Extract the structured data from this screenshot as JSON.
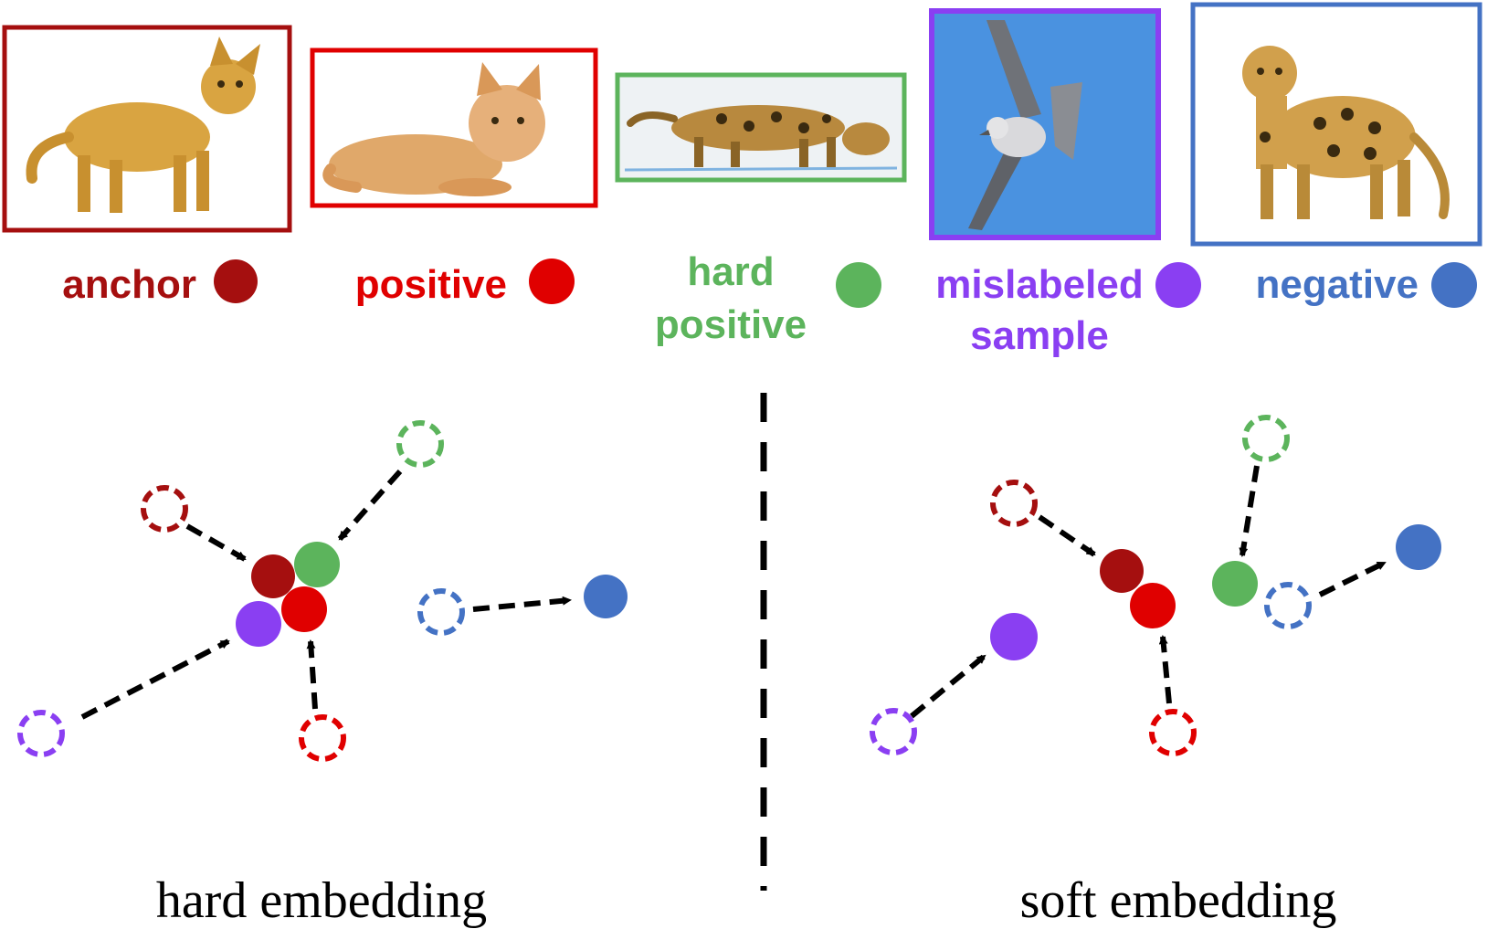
{
  "colors": {
    "anchor": "#a50f0f",
    "positive": "#e00000",
    "hard_positive": "#5cb45c",
    "mislabeled": "#8a3ff2",
    "negative": "#4472c4",
    "arrow": "#000000"
  },
  "legend": [
    {
      "key": "anchor",
      "lines": [
        "anchor"
      ],
      "image": "cat-standing-icon"
    },
    {
      "key": "positive",
      "lines": [
        "positive"
      ],
      "image": "cat-lying-icon"
    },
    {
      "key": "hard_positive",
      "lines": [
        "hard",
        "positive"
      ],
      "image": "bengal-cat-icon"
    },
    {
      "key": "mislabeled",
      "lines": [
        "mislabeled",
        "sample"
      ],
      "image": "seagull-icon"
    },
    {
      "key": "negative",
      "lines": [
        "negative"
      ],
      "image": "leopard-icon"
    }
  ],
  "captions": {
    "left": "hard embedding",
    "right": "soft embedding"
  }
}
